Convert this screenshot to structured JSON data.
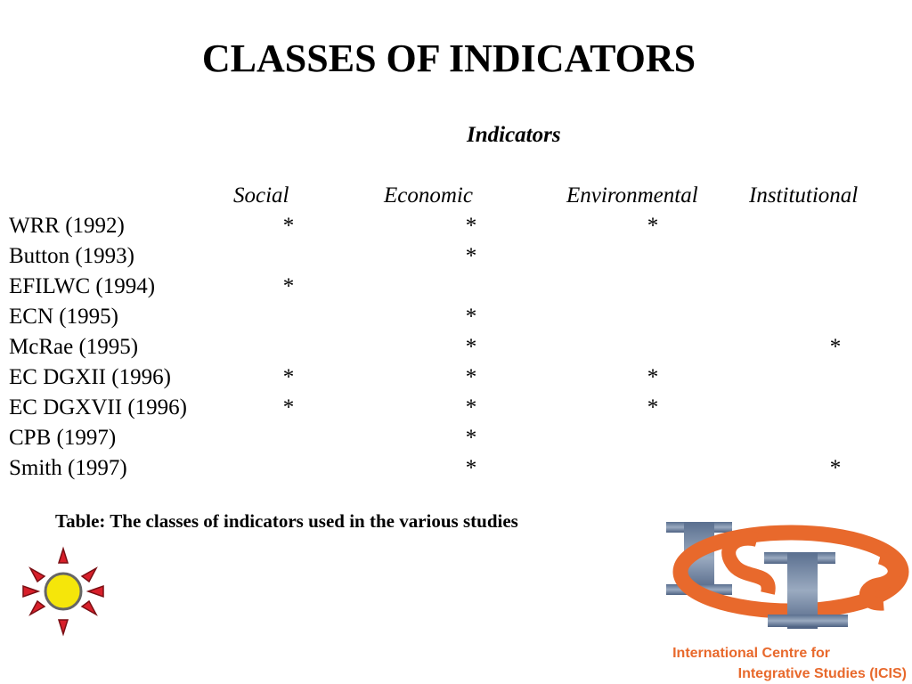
{
  "slide": {
    "title": "CLASSES OF INDICATORS",
    "caption": "Table: The classes of indicators used in the various studies"
  },
  "table": {
    "group_header": "Indicators",
    "columns": [
      "Social",
      "Economic",
      "Environmental",
      "Institutional"
    ],
    "rows": [
      {
        "study": "WRR (1992)",
        "marks": [
          "*",
          "*",
          "*",
          ""
        ]
      },
      {
        "study": "Button (1993)",
        "marks": [
          "",
          "*",
          "",
          ""
        ]
      },
      {
        "study": "EFILWC (1994)",
        "marks": [
          "*",
          "",
          "",
          ""
        ]
      },
      {
        "study": "ECN (1995)",
        "marks": [
          "",
          "*",
          "",
          ""
        ]
      },
      {
        "study": "McRae (1995)",
        "marks": [
          "",
          "*",
          "",
          "*"
        ]
      },
      {
        "study": "EC DGXII (1996)",
        "marks": [
          "*",
          "*",
          "*",
          ""
        ]
      },
      {
        "study": "EC DGXVII (1996)",
        "marks": [
          "*",
          "*",
          "*",
          ""
        ]
      },
      {
        "study": "CPB (1997)",
        "marks": [
          "",
          "*",
          "",
          ""
        ]
      },
      {
        "study": "Smith (1997)",
        "marks": [
          "",
          "*",
          "",
          "*"
        ]
      }
    ]
  },
  "logo": {
    "lettering": "ICIS",
    "org_line1": "International Centre for",
    "org_line2": "Integrative Studies (ICIS)",
    "accent_color": "#e8692c",
    "letter_color": "#6b7f99"
  },
  "decoration": {
    "sun_icon": "sun-icon",
    "ray_color": "#d81f2a",
    "center_color": "#f5e60a"
  }
}
